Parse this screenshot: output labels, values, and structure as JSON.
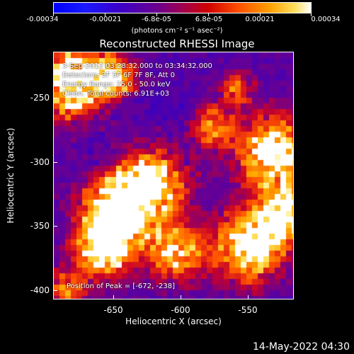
{
  "colorbar": {
    "ticks": [
      "-0.00034",
      "-0.00021",
      "-6.8e-05",
      "6.8e-05",
      "0.00021",
      "0.00034"
    ],
    "unit": "(photons cm⁻² s⁻¹ asec⁻²)",
    "range": [
      -0.00034,
      0.00034
    ],
    "colormap": [
      "#0000ff",
      "#6a0090",
      "#d00000",
      "#ff8000",
      "#ffe060",
      "#ffffff"
    ]
  },
  "title": "Reconstructed RHESSI Image",
  "annotations": {
    "time_range": "3-Sep-2012 03:28:32.000 to 03:34:32.000",
    "detectors": "Detectors: 3F 5F 6F 7F 8F, Att 0",
    "energy_range": "Energy Range: 25.0 - 50.0 keV",
    "counts": "Clean.  Total counts: 6.91E+03",
    "peak": "Position of Peak = [-672, -238]"
  },
  "axes": {
    "xlabel": "Heliocentric X (arcsec)",
    "ylabel": "Heliocentric Y (arcsec)",
    "xticks": [
      "-650",
      "-600",
      "-550"
    ],
    "yticks": [
      "-250",
      "-300",
      "-350",
      "-400"
    ],
    "xlim": [
      -690,
      -510
    ],
    "ylim": [
      -410,
      -225
    ]
  },
  "footer": "14-May-2022 04:30"
}
